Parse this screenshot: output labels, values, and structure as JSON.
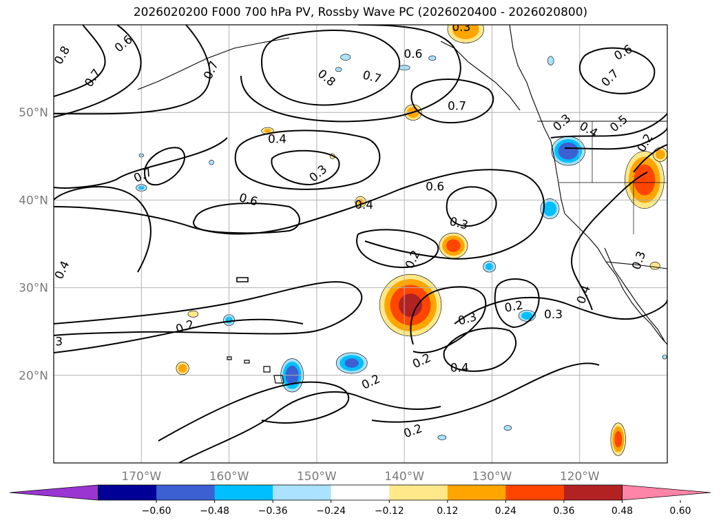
{
  "title": "2026020200 F000 700 hPa PV, Rossby Wave PC (2026020400 - 2026020800)",
  "chart_data": {
    "type": "map-contour",
    "title": "2026020200 F000 700 hPa PV, Rossby Wave PC (2026020400 - 2026020800)",
    "lon_range": [
      -180,
      -110
    ],
    "lat_range": [
      10,
      60
    ],
    "lon_ticks": [
      {
        "value": -170,
        "label": "170°W"
      },
      {
        "value": -160,
        "label": "160°W"
      },
      {
        "value": -150,
        "label": "150°W"
      },
      {
        "value": -140,
        "label": "140°W"
      },
      {
        "value": -130,
        "label": "130°W"
      },
      {
        "value": -120,
        "label": "120°W"
      }
    ],
    "lat_ticks": [
      {
        "value": 20,
        "label": "20°N"
      },
      {
        "value": 30,
        "label": "30°N"
      },
      {
        "value": 40,
        "label": "40°N"
      },
      {
        "value": 50,
        "label": "50°N"
      }
    ],
    "colorbar": {
      "levels": [
        -0.6,
        -0.48,
        -0.36,
        -0.24,
        -0.12,
        0.12,
        0.24,
        0.36,
        0.48,
        0.6
      ],
      "tick_labels": [
        "−0.60",
        "−0.48",
        "−0.36",
        "−0.24",
        "−0.12",
        "0.12",
        "0.24",
        "0.36",
        "0.48",
        "0.60"
      ],
      "colors": [
        "#9a35d2",
        "#000096",
        "#3c5fd2",
        "#00bfff",
        "#aae2ff",
        "#ffffff",
        "#ffe88a",
        "#ffa500",
        "#ff4500",
        "#b22222",
        "#ff85a8"
      ],
      "extend": "both"
    },
    "pv_contour_labels": [
      {
        "text": "0.8",
        "lon": -179.0,
        "lat": 56.5,
        "angle": -60
      },
      {
        "text": "0.7",
        "lon": -175.5,
        "lat": 53.9,
        "angle": -55
      },
      {
        "text": "0.6",
        "lon": -172.0,
        "lat": 57.8,
        "angle": -40
      },
      {
        "text": "0.7",
        "lon": -162.0,
        "lat": 54.8,
        "angle": -65
      },
      {
        "text": "0.8",
        "lon": -148.9,
        "lat": 53.9,
        "angle": 40
      },
      {
        "text": "0.7",
        "lon": -143.7,
        "lat": 54.0,
        "angle": 15
      },
      {
        "text": "0.6",
        "lon": -139.0,
        "lat": 56.6,
        "angle": 0
      },
      {
        "text": "0.7",
        "lon": -134.0,
        "lat": 50.7,
        "angle": 0
      },
      {
        "text": "0.3",
        "lon": -133.5,
        "lat": 59.7,
        "angle": 0
      },
      {
        "text": "0.6",
        "lon": -115.0,
        "lat": 56.8,
        "angle": -30
      },
      {
        "text": "0.7",
        "lon": -116.5,
        "lat": 53.9,
        "angle": -45
      },
      {
        "text": "0.3",
        "lon": -122.0,
        "lat": 48.8,
        "angle": -40
      },
      {
        "text": "0.4",
        "lon": -119.0,
        "lat": 48.0,
        "angle": 30
      },
      {
        "text": "0.5",
        "lon": -115.5,
        "lat": 48.7,
        "angle": -40
      },
      {
        "text": "0.2",
        "lon": -112.5,
        "lat": 46.5,
        "angle": -60
      },
      {
        "text": "0.4",
        "lon": -154.5,
        "lat": 46.9,
        "angle": 0
      },
      {
        "text": "0.3",
        "lon": -149.8,
        "lat": 43.0,
        "angle": -40
      },
      {
        "text": "0.7",
        "lon": -169.8,
        "lat": 42.8,
        "angle": -25
      },
      {
        "text": "0.6",
        "lon": -157.8,
        "lat": 40.0,
        "angle": 15
      },
      {
        "text": "0.6",
        "lon": -136.5,
        "lat": 41.5,
        "angle": 0
      },
      {
        "text": "0.4",
        "lon": -144.6,
        "lat": 39.4,
        "angle": 0
      },
      {
        "text": "0.3",
        "lon": -133.8,
        "lat": 37.3,
        "angle": 15
      },
      {
        "text": "0.2",
        "lon": -139.0,
        "lat": 33.2,
        "angle": -65
      },
      {
        "text": "0.4",
        "lon": -179.0,
        "lat": 32.0,
        "angle": -65
      },
      {
        "text": "0.2",
        "lon": -127.5,
        "lat": 27.8,
        "angle": -10
      },
      {
        "text": "0.3",
        "lon": -132.8,
        "lat": 26.4,
        "angle": -15
      },
      {
        "text": "0.3",
        "lon": -123.0,
        "lat": 26.9,
        "angle": 0
      },
      {
        "text": "0.4",
        "lon": -119.5,
        "lat": 29.2,
        "angle": -70
      },
      {
        "text": "0.3",
        "lon": -113.2,
        "lat": 33.1,
        "angle": -70
      },
      {
        "text": "0.2",
        "lon": -165.0,
        "lat": 25.5,
        "angle": -20
      },
      {
        "text": "0.2",
        "lon": -138.0,
        "lat": 21.6,
        "angle": -25
      },
      {
        "text": "0.4",
        "lon": -133.7,
        "lat": 20.8,
        "angle": 0
      },
      {
        "text": "0.2",
        "lon": -143.8,
        "lat": 19.2,
        "angle": -25
      },
      {
        "text": "0.2",
        "lon": -139.0,
        "lat": 13.6,
        "angle": -20
      },
      {
        "text": "3",
        "lon": -179.4,
        "lat": 23.8,
        "angle": 0
      }
    ],
    "pc_blobs": [
      {
        "lon": -139.3,
        "lat": 28.0,
        "rx": 4.0,
        "ry": 4.0,
        "value": 0.5
      },
      {
        "lon": -134.4,
        "lat": 34.8,
        "rx": 1.9,
        "ry": 1.7,
        "value": 0.4
      },
      {
        "lon": -139.0,
        "lat": 50.0,
        "rx": 1.2,
        "ry": 1.1,
        "value": 0.32
      },
      {
        "lon": -133.0,
        "lat": 59.5,
        "rx": 2.5,
        "ry": 1.9,
        "value": 0.34
      },
      {
        "lon": -155.6,
        "lat": 47.9,
        "rx": 0.9,
        "ry": 0.5,
        "value": 0.25
      },
      {
        "lon": -145.0,
        "lat": 39.8,
        "rx": 0.8,
        "ry": 0.8,
        "value": 0.25
      },
      {
        "lon": -148.2,
        "lat": 45.0,
        "rx": 0.4,
        "ry": 0.4,
        "value": 0.22
      },
      {
        "lon": -164.1,
        "lat": 27.0,
        "rx": 0.8,
        "ry": 0.5,
        "value": 0.22
      },
      {
        "lon": -165.3,
        "lat": 20.8,
        "rx": 0.9,
        "ry": 0.9,
        "value": 0.3
      },
      {
        "lon": -112.6,
        "lat": 42.3,
        "rx": 2.6,
        "ry": 3.8,
        "value": 0.42
      },
      {
        "lon": -110.8,
        "lat": 45.2,
        "rx": 1.0,
        "ry": 1.0,
        "value": 0.3
      },
      {
        "lon": -111.4,
        "lat": 32.5,
        "rx": 0.8,
        "ry": 0.6,
        "value": 0.2
      },
      {
        "lon": -115.6,
        "lat": 12.7,
        "rx": 1.0,
        "ry": 2.2,
        "value": 0.4
      },
      {
        "lon": -121.3,
        "lat": 45.6,
        "rx": 2.2,
        "ry": 1.9,
        "value": -0.45
      },
      {
        "lon": -123.4,
        "lat": 39.0,
        "rx": 1.3,
        "ry": 1.4,
        "value": -0.33
      },
      {
        "lon": -152.8,
        "lat": 20.0,
        "rx": 1.5,
        "ry": 2.2,
        "value": -0.44
      },
      {
        "lon": -146.0,
        "lat": 21.4,
        "rx": 2.1,
        "ry": 1.4,
        "value": -0.38
      },
      {
        "lon": -126.0,
        "lat": 26.8,
        "rx": 1.2,
        "ry": 0.8,
        "value": -0.3
      },
      {
        "lon": -130.3,
        "lat": 32.4,
        "rx": 0.9,
        "ry": 0.8,
        "value": -0.28
      },
      {
        "lon": -160.0,
        "lat": 26.3,
        "rx": 0.8,
        "ry": 0.8,
        "value": -0.28
      },
      {
        "lon": -170.0,
        "lat": 41.4,
        "rx": 0.8,
        "ry": 0.5,
        "value": -0.25
      },
      {
        "lon": -140.0,
        "lat": 55.1,
        "rx": 0.9,
        "ry": 0.4,
        "value": -0.2
      },
      {
        "lon": -146.7,
        "lat": 56.3,
        "rx": 0.8,
        "ry": 0.5,
        "value": -0.2
      },
      {
        "lon": -136.8,
        "lat": 56.2,
        "rx": 0.6,
        "ry": 0.4,
        "value": -0.18
      },
      {
        "lon": -123.3,
        "lat": 55.9,
        "rx": 0.5,
        "ry": 0.7,
        "value": -0.2
      },
      {
        "lon": -128.2,
        "lat": 14.0,
        "rx": 0.6,
        "ry": 0.4,
        "value": -0.2
      },
      {
        "lon": -135.7,
        "lat": 12.9,
        "rx": 0.7,
        "ry": 0.4,
        "value": -0.18
      },
      {
        "lon": -162.0,
        "lat": 44.3,
        "rx": 0.4,
        "ry": 0.4,
        "value": -0.18
      },
      {
        "lon": -170.0,
        "lat": 45.1,
        "rx": 0.4,
        "ry": 0.3,
        "value": -0.18
      },
      {
        "lon": -147.5,
        "lat": 54.9,
        "rx": 0.6,
        "ry": 0.4,
        "value": -0.15
      },
      {
        "lon": -110.3,
        "lat": 22.1,
        "rx": 0.4,
        "ry": 0.4,
        "value": -0.15
      }
    ]
  }
}
